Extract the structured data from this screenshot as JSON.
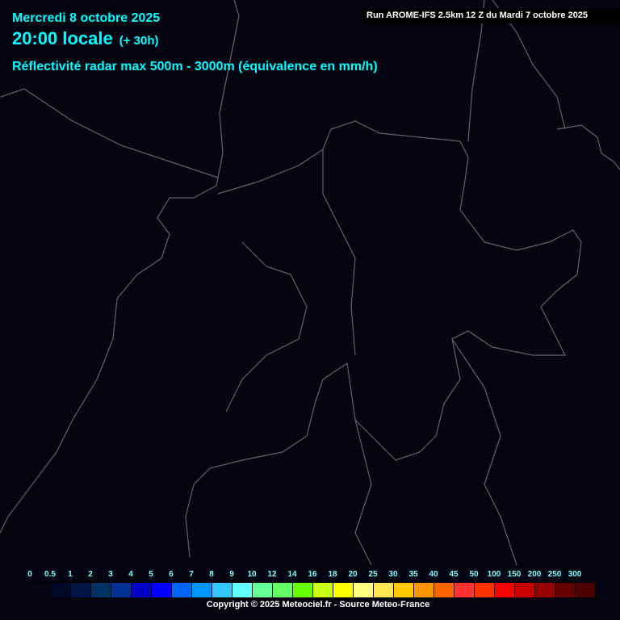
{
  "header": {
    "date": "Mercredi 8 octobre 2025",
    "time": "20:00 locale",
    "offset": "(+ 30h)",
    "parameter": "Réflectivité radar max 500m - 3000m (équivalence en mm/h)",
    "run": "Run AROME-IFS 2.5km 12 Z du Mardi 7 octobre 2025"
  },
  "colors": {
    "background": "#050512",
    "borders": "#8a8a8a",
    "text": "#00ffff"
  },
  "legend": {
    "labels": [
      "0",
      "0.5",
      "1",
      "2",
      "3",
      "4",
      "5",
      "6",
      "7",
      "8",
      "9",
      "10",
      "12",
      "14",
      "16",
      "18",
      "20",
      "25",
      "30",
      "35",
      "40",
      "45",
      "50",
      "100",
      "150",
      "200",
      "250",
      "300"
    ],
    "colors": [
      "#050514",
      "#000a28",
      "#001446",
      "#003264",
      "#003296",
      "#0000c8",
      "#0000ff",
      "#0064ff",
      "#0096ff",
      "#32c8ff",
      "#64ffff",
      "#64ff96",
      "#64ff64",
      "#64ff00",
      "#c8ff14",
      "#ffff00",
      "#ffff82",
      "#ffe650",
      "#ffc800",
      "#ff9600",
      "#ff6400",
      "#ff3232",
      "#ff3200",
      "#ff0000",
      "#c80000",
      "#960000",
      "#640000",
      "#500000"
    ]
  },
  "footer": {
    "copyright": "Copyright © 2025 Meteociel.fr - Source Meteo-France"
  }
}
